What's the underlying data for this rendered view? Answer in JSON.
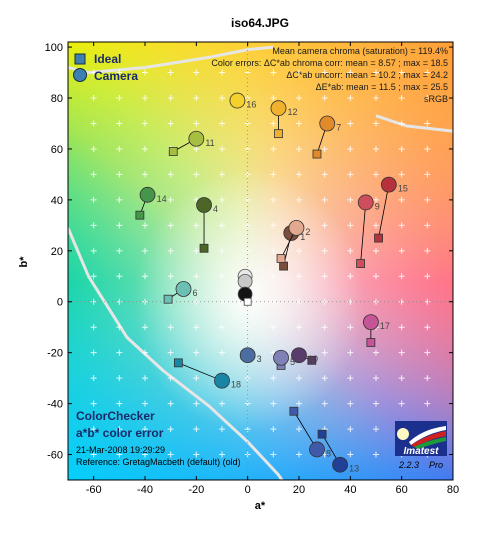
{
  "chart_data": {
    "type": "scatter",
    "title": "iso64.JPG",
    "xlabel": "a*",
    "ylabel": "b*",
    "xlim": [
      -70,
      80
    ],
    "ylim": [
      -70,
      102
    ],
    "xticks": [
      -60,
      -40,
      -20,
      0,
      20,
      40,
      60,
      80
    ],
    "yticks": [
      -60,
      -40,
      -20,
      0,
      20,
      40,
      60,
      80,
      100
    ],
    "grid": true,
    "legend": {
      "position": "top-left",
      "entries": [
        {
          "label": "Ideal",
          "marker": "square",
          "color": "#3d7fb0"
        },
        {
          "label": "Camera",
          "marker": "circle",
          "color": "#3d7fb0"
        }
      ]
    },
    "stats": [
      "Mean camera chroma (saturation) = 119.4%",
      "Color errors:  ΔC*ab chroma corr:  mean = 8.57 ;  max = 18.5",
      "ΔC*ab uncorr:  mean = 10.2 ;  max = 24.2",
      "ΔE*ab:  mean = 11.5 ;  max = 25.5",
      "sRGB"
    ],
    "bottom_left": {
      "title1": "ColorChecker",
      "title2": "a*b* color error",
      "date": "21-Mar-2008 19:29:29",
      "reference": "Reference: GretagMacbeth (default) (old)"
    },
    "logo": {
      "name": "Imatest",
      "version": "2.2.3",
      "edition": "Pro"
    },
    "patches": [
      {
        "id": "1",
        "ideal": [
          14,
          14
        ],
        "camera": [
          17,
          27
        ],
        "color": "#7a4e3c"
      },
      {
        "id": "2",
        "ideal": [
          13,
          17
        ],
        "camera": [
          19,
          29
        ],
        "color": "#e3a890"
      },
      {
        "id": "3",
        "ideal": [
          -1,
          -21
        ],
        "camera": [
          0,
          -21
        ],
        "color": "#4b6d9f"
      },
      {
        "id": "4",
        "ideal": [
          -17,
          21
        ],
        "camera": [
          -17,
          38
        ],
        "color": "#4c6628"
      },
      {
        "id": "5",
        "ideal": [
          13,
          -25
        ],
        "camera": [
          13,
          -22
        ],
        "color": "#7f80b5"
      },
      {
        "id": "6",
        "ideal": [
          -31,
          1
        ],
        "camera": [
          -25,
          5
        ],
        "color": "#6cbfb3"
      },
      {
        "id": "7",
        "ideal": [
          27,
          58
        ],
        "camera": [
          31,
          70
        ],
        "color": "#e08a2a"
      },
      {
        "id": "8",
        "ideal": [
          18,
          -43
        ],
        "camera": [
          27,
          -58
        ],
        "color": "#3f5aaa"
      },
      {
        "id": "9",
        "ideal": [
          44,
          15
        ],
        "camera": [
          46,
          39
        ],
        "color": "#cf4e5c"
      },
      {
        "id": "10",
        "ideal": [
          25,
          -23
        ],
        "camera": [
          20,
          -21
        ],
        "color": "#5a3c6b"
      },
      {
        "id": "11",
        "ideal": [
          -29,
          59
        ],
        "camera": [
          -20,
          64
        ],
        "color": "#a6bf40"
      },
      {
        "id": "12",
        "ideal": [
          12,
          66
        ],
        "camera": [
          12,
          76
        ],
        "color": "#f0b12e"
      },
      {
        "id": "13",
        "ideal": [
          29,
          -52
        ],
        "camera": [
          36,
          -64
        ],
        "color": "#203f96"
      },
      {
        "id": "14",
        "ideal": [
          -42,
          34
        ],
        "camera": [
          -39,
          42
        ],
        "color": "#45954a"
      },
      {
        "id": "15",
        "ideal": [
          51,
          25
        ],
        "camera": [
          55,
          46
        ],
        "color": "#b5313b"
      },
      {
        "id": "16",
        "ideal": [
          -4,
          79
        ],
        "camera": [
          -4,
          79
        ],
        "color": "#f5d12b"
      },
      {
        "id": "17",
        "ideal": [
          48,
          -16
        ],
        "camera": [
          48,
          -8
        ],
        "color": "#c65598"
      },
      {
        "id": "18",
        "ideal": [
          -27,
          -24
        ],
        "camera": [
          -10,
          -31
        ],
        "color": "#1a86a6"
      }
    ],
    "neutral_points": [
      [
        -1,
        10
      ],
      [
        -1,
        8
      ],
      [
        -1,
        3
      ],
      [
        0,
        0
      ]
    ],
    "gamut_curves": [
      [
        [
          -70,
          92
        ],
        [
          -62,
          90
        ],
        [
          -40,
          92
        ],
        [
          -15,
          96
        ],
        [
          0,
          99
        ],
        [
          10,
          100
        ]
      ],
      [
        [
          50,
          73
        ],
        [
          62,
          69
        ],
        [
          80,
          67
        ]
      ],
      [
        [
          -70,
          29
        ],
        [
          -62,
          10
        ],
        [
          -47,
          -14
        ],
        [
          -33,
          -27
        ],
        [
          -15,
          -41
        ],
        [
          0,
          -55
        ],
        [
          12,
          -68
        ],
        [
          16,
          -74
        ]
      ]
    ]
  }
}
